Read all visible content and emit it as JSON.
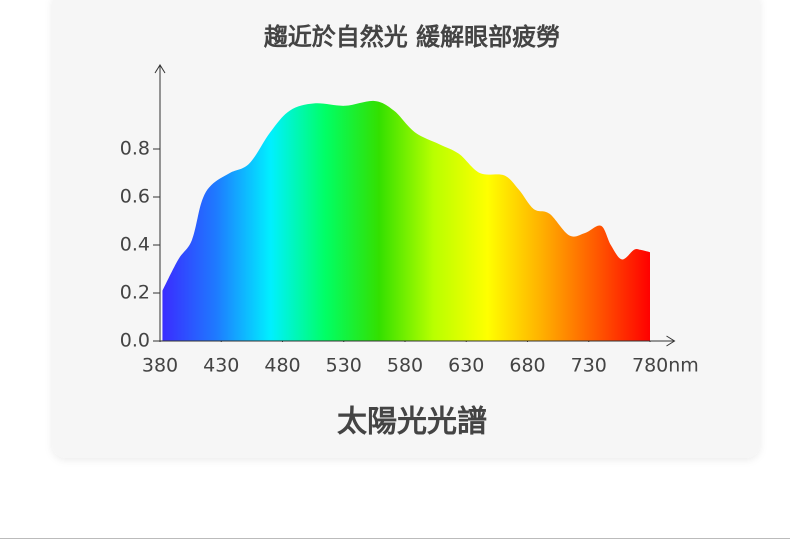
{
  "chart_data": {
    "type": "area",
    "title": "趨近於自然光 緩解眼部疲勞",
    "xlabel": "太陽光光譜",
    "x": [
      382,
      395,
      406,
      414,
      422,
      437,
      453,
      470,
      486,
      506,
      531,
      555,
      571,
      588,
      608,
      624,
      641,
      661,
      673,
      685,
      698,
      714,
      727,
      740,
      748,
      757,
      767,
      772,
      780
    ],
    "values": [
      0.21,
      0.34,
      0.42,
      0.58,
      0.65,
      0.7,
      0.74,
      0.87,
      0.96,
      0.99,
      0.98,
      1.0,
      0.96,
      0.87,
      0.82,
      0.78,
      0.7,
      0.69,
      0.63,
      0.55,
      0.53,
      0.44,
      0.45,
      0.48,
      0.4,
      0.34,
      0.38,
      0.38,
      0.37
    ],
    "colors": [
      "#3a2cff",
      "#1e7bff",
      "#00f0ff",
      "#00ff66",
      "#33e000",
      "#b8ff00",
      "#ffff00",
      "#ffb000",
      "#ff5a00",
      "#ff0000"
    ],
    "xlim": [
      380,
      800
    ],
    "xticks": [
      380,
      430,
      480,
      530,
      580,
      630,
      680,
      730,
      {
        "value": 780,
        "label": "780nm"
      }
    ],
    "ylim": [
      0,
      1.15
    ],
    "yticks": [
      {
        "value": 0,
        "label": "0.0"
      },
      0.2,
      0.4,
      0.6,
      0.8
    ]
  }
}
